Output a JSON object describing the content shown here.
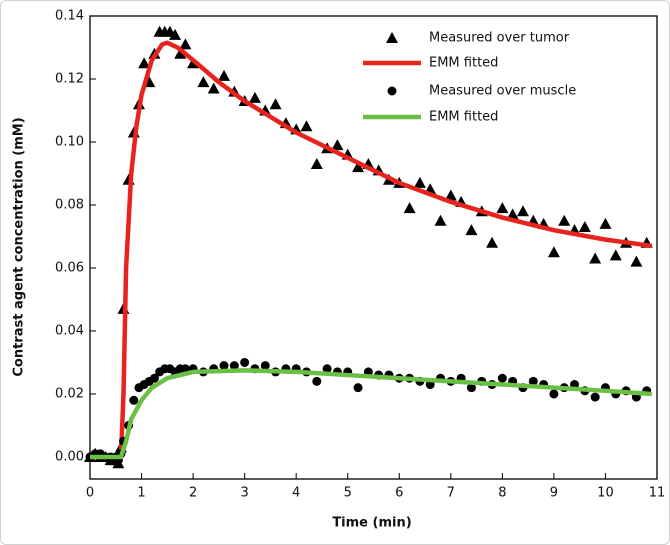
{
  "chart_data": {
    "type": "scatter-line",
    "xlabel": "Time (min)",
    "ylabel": "Contrast agent concentration (mM)",
    "xlim": [
      0,
      11
    ],
    "ylim": [
      -0.007,
      0.14
    ],
    "xticks": [
      0,
      1,
      2,
      3,
      4,
      5,
      6,
      7,
      8,
      9,
      10,
      11
    ],
    "yticks": [
      {
        "value": 0,
        "label": "0.00"
      },
      {
        "value": 0.02,
        "label": "0.02"
      },
      {
        "value": 0.04,
        "label": "0.04"
      },
      {
        "value": 0.06,
        "label": "0.06"
      },
      {
        "value": 0.08,
        "label": "0.08"
      },
      {
        "value": 0.1,
        "label": "0.10"
      },
      {
        "value": 0.12,
        "label": "0.12"
      },
      {
        "value": 0.14,
        "label": "0.14"
      }
    ],
    "legend": "upper right",
    "series": [
      {
        "name": "Measured over tumor",
        "kind": "scatter",
        "marker": "triangle",
        "color": "#000000",
        "x": [
          0,
          0.1,
          0.2,
          0.3,
          0.4,
          0.5,
          0.55,
          0.6,
          0.65,
          0.75,
          0.85,
          0.95,
          1.05,
          1.15,
          1.25,
          1.35,
          1.45,
          1.55,
          1.65,
          1.75,
          1.85,
          2.0,
          2.2,
          2.4,
          2.6,
          2.8,
          3.0,
          3.2,
          3.4,
          3.6,
          3.8,
          4.0,
          4.2,
          4.4,
          4.6,
          4.8,
          5.0,
          5.2,
          5.4,
          5.6,
          5.8,
          6.0,
          6.2,
          6.4,
          6.6,
          6.8,
          7.0,
          7.2,
          7.4,
          7.6,
          7.8,
          8.0,
          8.2,
          8.4,
          8.6,
          8.8,
          9.0,
          9.2,
          9.4,
          9.6,
          9.8,
          10.0,
          10.2,
          10.4,
          10.6,
          10.8
        ],
        "values": [
          0,
          0.001,
          0,
          0,
          -0.001,
          -0.001,
          -0.002,
          0.003,
          0.047,
          0.088,
          0.103,
          0.112,
          0.125,
          0.119,
          0.128,
          0.135,
          0.135,
          0.135,
          0.134,
          0.128,
          0.131,
          0.125,
          0.119,
          0.117,
          0.121,
          0.116,
          0.113,
          0.114,
          0.11,
          0.112,
          0.106,
          0.104,
          0.105,
          0.093,
          0.098,
          0.099,
          0.096,
          0.092,
          0.093,
          0.091,
          0.088,
          0.087,
          0.079,
          0.087,
          0.085,
          0.075,
          0.083,
          0.081,
          0.072,
          0.078,
          0.068,
          0.079,
          0.077,
          0.078,
          0.075,
          0.074,
          0.065,
          0.075,
          0.072,
          0.073,
          0.063,
          0.074,
          0.064,
          0.068,
          0.062,
          0.068
        ]
      },
      {
        "name": "EMM fitted",
        "kind": "line",
        "color": "#e8231d",
        "x": [
          0,
          0.6,
          0.65,
          0.7,
          0.8,
          0.9,
          1.0,
          1.2,
          1.4,
          1.5,
          1.7,
          2.0,
          2.5,
          3,
          4,
          5,
          6,
          7,
          8,
          9,
          10,
          10.9
        ],
        "values": [
          0,
          0,
          0.02,
          0.06,
          0.09,
          0.105,
          0.115,
          0.126,
          0.131,
          0.1315,
          0.13,
          0.126,
          0.119,
          0.113,
          0.103,
          0.095,
          0.087,
          0.081,
          0.076,
          0.072,
          0.069,
          0.067
        ]
      },
      {
        "name": "Measured over muscle",
        "kind": "scatter",
        "marker": "circle",
        "color": "#000000",
        "x": [
          0,
          0.1,
          0.2,
          0.3,
          0.4,
          0.5,
          0.55,
          0.6,
          0.65,
          0.75,
          0.85,
          0.95,
          1.05,
          1.15,
          1.25,
          1.35,
          1.45,
          1.55,
          1.65,
          1.75,
          1.85,
          2.0,
          2.2,
          2.4,
          2.6,
          2.8,
          3.0,
          3.2,
          3.4,
          3.6,
          3.8,
          4.0,
          4.2,
          4.4,
          4.6,
          4.8,
          5.0,
          5.2,
          5.4,
          5.6,
          5.8,
          6.0,
          6.2,
          6.4,
          6.6,
          6.8,
          7.0,
          7.2,
          7.4,
          7.6,
          7.8,
          8.0,
          8.2,
          8.4,
          8.6,
          8.8,
          9.0,
          9.2,
          9.4,
          9.6,
          9.8,
          10.0,
          10.2,
          10.4,
          10.6,
          10.8
        ],
        "values": [
          0,
          0.001,
          0.001,
          0,
          0,
          0,
          -0.001,
          0.001,
          0.005,
          0.01,
          0.018,
          0.022,
          0.023,
          0.024,
          0.025,
          0.027,
          0.028,
          0.028,
          0.027,
          0.028,
          0.028,
          0.028,
          0.027,
          0.028,
          0.029,
          0.029,
          0.03,
          0.028,
          0.029,
          0.027,
          0.028,
          0.028,
          0.027,
          0.024,
          0.028,
          0.027,
          0.027,
          0.022,
          0.027,
          0.026,
          0.026,
          0.025,
          0.025,
          0.024,
          0.023,
          0.025,
          0.024,
          0.025,
          0.022,
          0.024,
          0.023,
          0.025,
          0.024,
          0.022,
          0.024,
          0.023,
          0.02,
          0.022,
          0.023,
          0.021,
          0.019,
          0.022,
          0.02,
          0.021,
          0.019,
          0.021
        ]
      },
      {
        "name": "EMM fitted",
        "kind": "line",
        "color": "#6abf45",
        "x": [
          0,
          0.6,
          0.7,
          0.8,
          1.0,
          1.2,
          1.5,
          2,
          3,
          4,
          5,
          6,
          7,
          8,
          9,
          10,
          10.9
        ],
        "values": [
          0,
          0,
          0.005,
          0.012,
          0.018,
          0.022,
          0.025,
          0.027,
          0.0275,
          0.027,
          0.026,
          0.025,
          0.024,
          0.023,
          0.022,
          0.021,
          0.02
        ]
      }
    ]
  }
}
